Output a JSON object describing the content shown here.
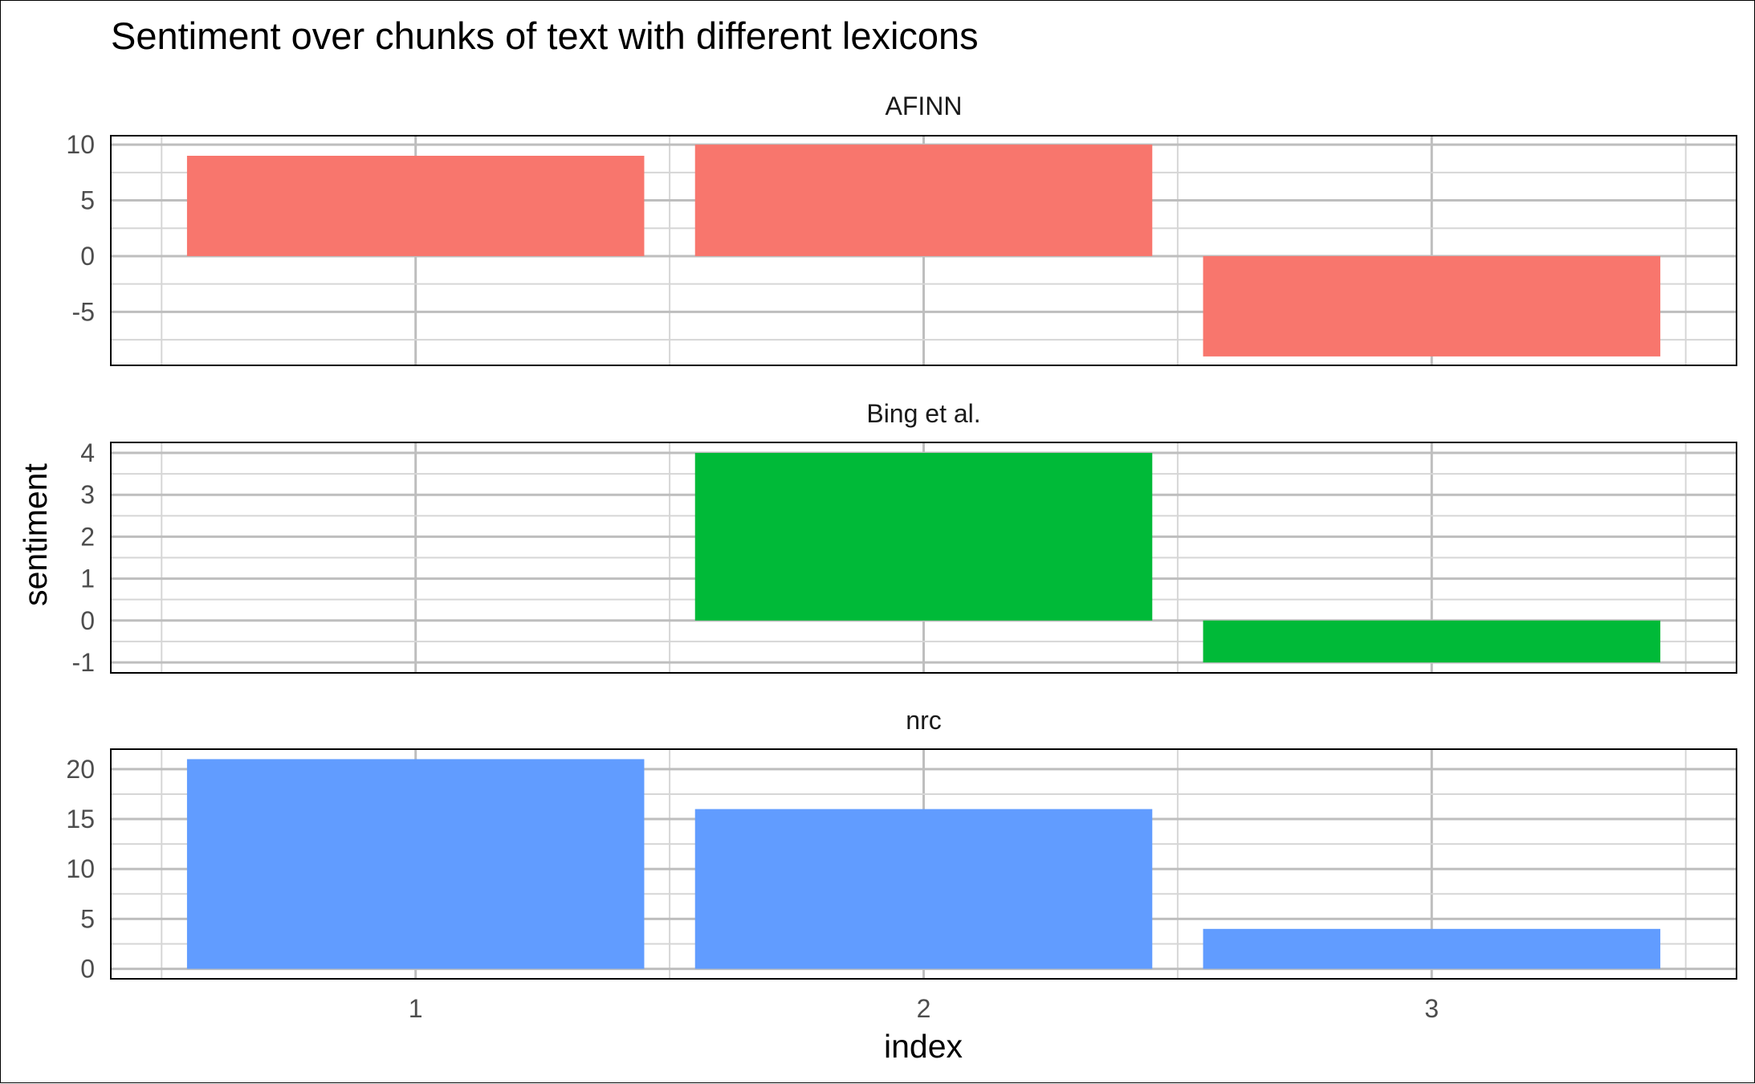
{
  "chart_data": {
    "type": "bar",
    "title": "Sentiment over chunks of text with different lexicons",
    "xlabel": "index",
    "ylabel": "sentiment",
    "categories": [
      "1",
      "2",
      "3"
    ],
    "grid": true,
    "legend": "none",
    "facets": [
      {
        "label": "AFINN",
        "values": [
          9,
          10,
          -9
        ],
        "color": "#F8766D",
        "ylim": [
          -9.8,
          10.8
        ],
        "yticks": [
          10,
          5,
          0,
          -5
        ]
      },
      {
        "label": "Bing et al.",
        "values": [
          0,
          4,
          -1
        ],
        "color": "#00BA38",
        "ylim": [
          -1.25,
          4.25
        ],
        "yticks": [
          4,
          3,
          2,
          1,
          0,
          -1
        ]
      },
      {
        "label": "nrc",
        "values": [
          21,
          16,
          4
        ],
        "color": "#619CFF",
        "ylim": [
          -1,
          22
        ],
        "yticks": [
          20,
          15,
          10,
          5,
          0
        ]
      }
    ]
  }
}
